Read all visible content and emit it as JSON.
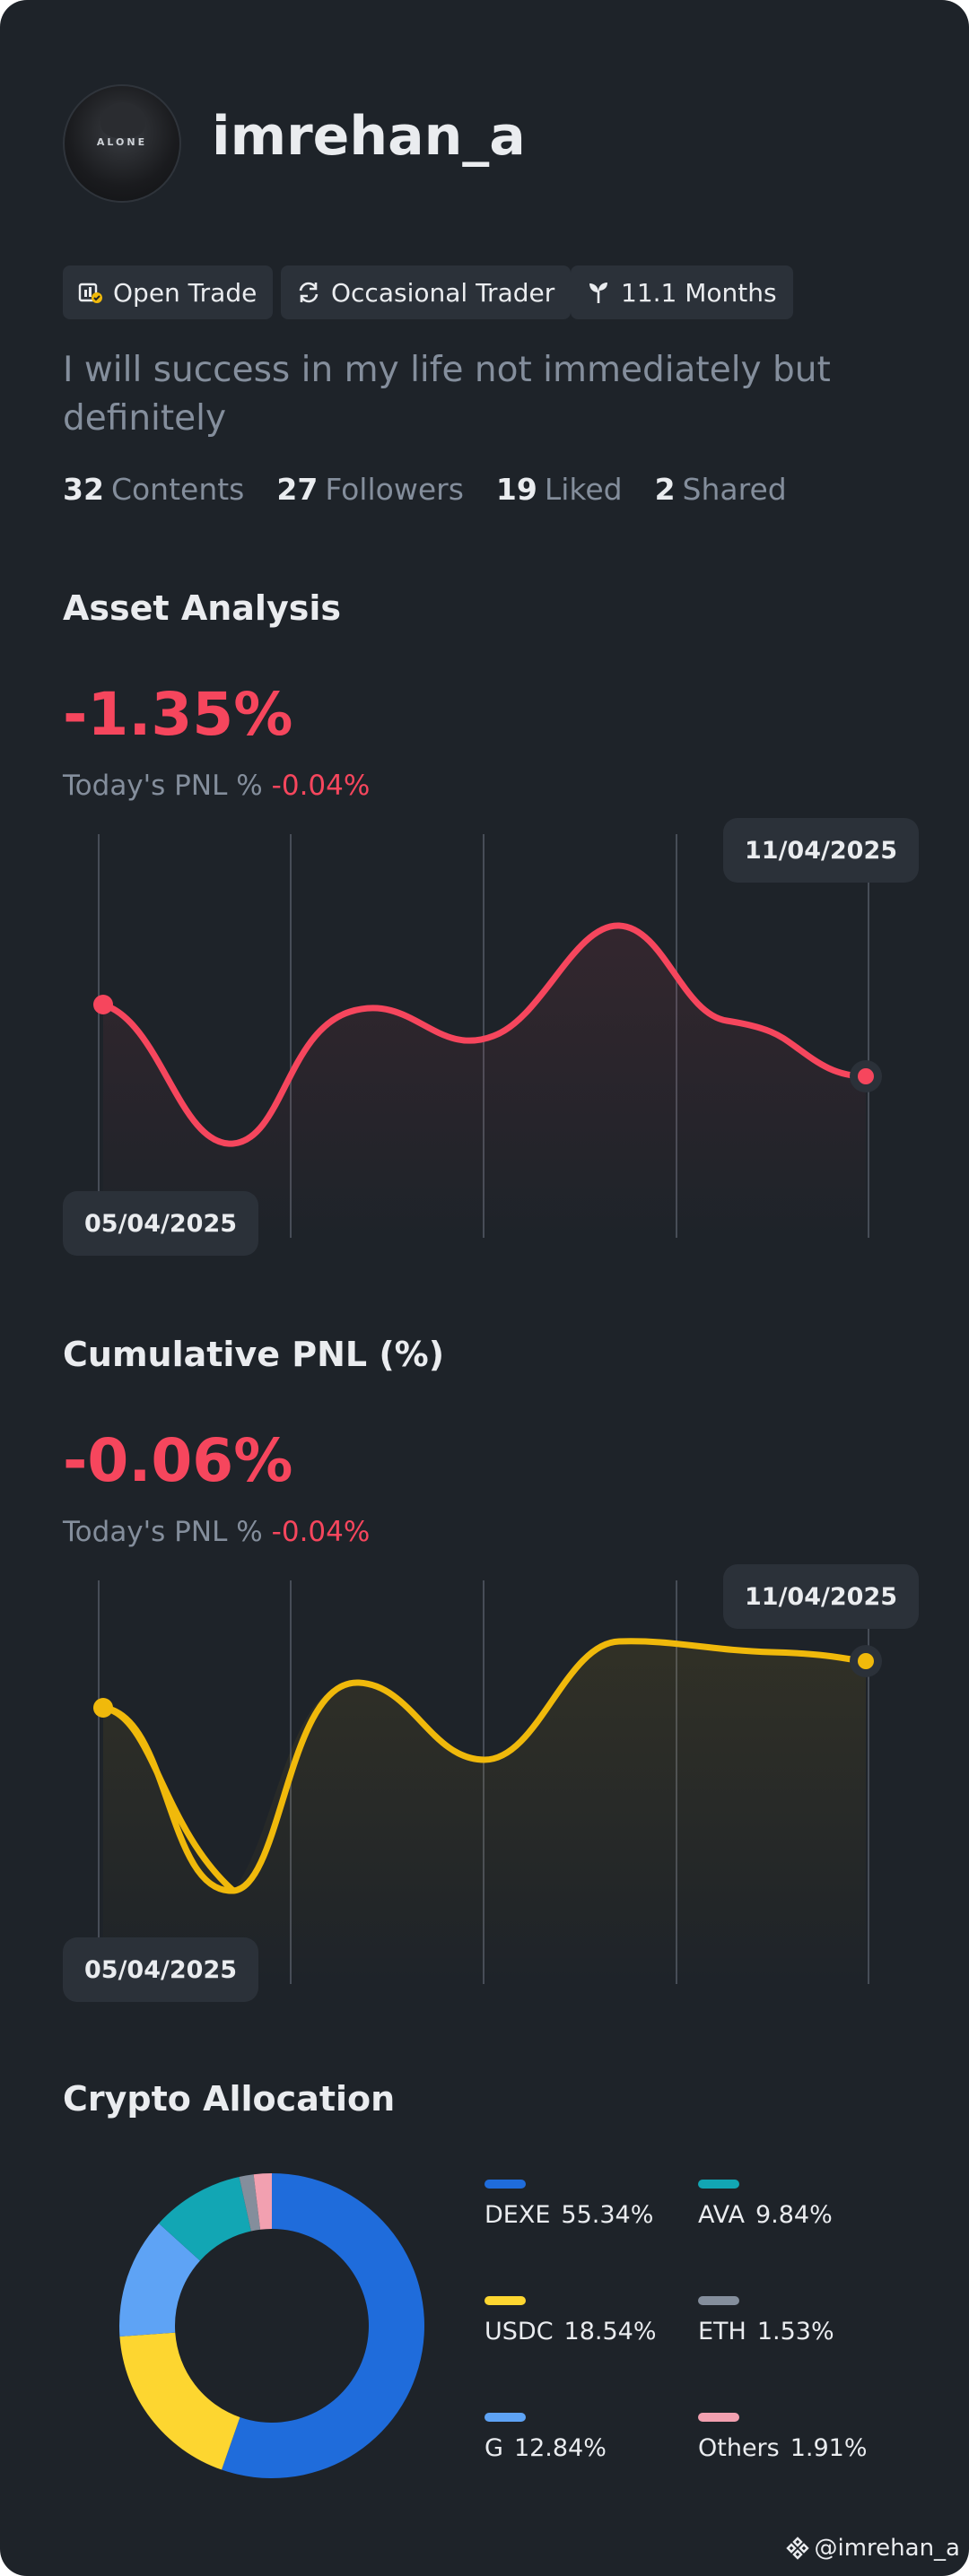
{
  "profile": {
    "username": "imrehan_a",
    "avatar_text": "ALONE",
    "tags": [
      {
        "icon": "open-trade-icon",
        "label": "Open Trade"
      },
      {
        "icon": "repeat-icon",
        "label": "Occasional Trader"
      },
      {
        "icon": "sprout-icon",
        "label": "11.1 Months"
      }
    ],
    "bio": "I will success in my life not immediately but definitely",
    "stats": {
      "contents": {
        "value": "32",
        "label": "Contents"
      },
      "followers": {
        "value": "27",
        "label": "Followers"
      },
      "liked": {
        "value": "19",
        "label": "Liked"
      },
      "shared": {
        "value": "2",
        "label": "Shared"
      }
    }
  },
  "asset_analysis": {
    "title": "Asset Analysis",
    "value": "-1.35%",
    "today_label": "Today's PNL %",
    "today_value": "-0.04%",
    "start_date": "05/04/2025",
    "end_date": "11/04/2025",
    "line_color": "#f6465d"
  },
  "cumulative_pnl": {
    "title": "Cumulative PNL (%)",
    "value": "-0.06%",
    "today_label": "Today's PNL %",
    "today_value": "-0.04%",
    "start_date": "05/04/2025",
    "end_date": "11/04/2025",
    "line_color": "#f0b90b"
  },
  "crypto_allocation": {
    "title": "Crypto Allocation",
    "items": [
      {
        "name": "DEXE",
        "pct": "55.34%",
        "value": 55.34,
        "color": "#1f6cdb"
      },
      {
        "name": "AVA",
        "pct": "9.84%",
        "value": 9.84,
        "color": "#12a6b4"
      },
      {
        "name": "USDC",
        "pct": "18.54%",
        "value": 18.54,
        "color": "#fdd630"
      },
      {
        "name": "ETH",
        "pct": "1.53%",
        "value": 1.53,
        "color": "#848e9c"
      },
      {
        "name": "G",
        "pct": "12.84%",
        "value": 12.84,
        "color": "#5ea3f5"
      },
      {
        "name": "Others",
        "pct": "1.91%",
        "value": 1.91,
        "color": "#f2a0b0"
      }
    ]
  },
  "colors": {
    "background": "#1e2329",
    "panel": "#2b3139",
    "negative": "#f6465d",
    "muted": "#848e9c"
  },
  "watermark": "@imrehan_a"
}
